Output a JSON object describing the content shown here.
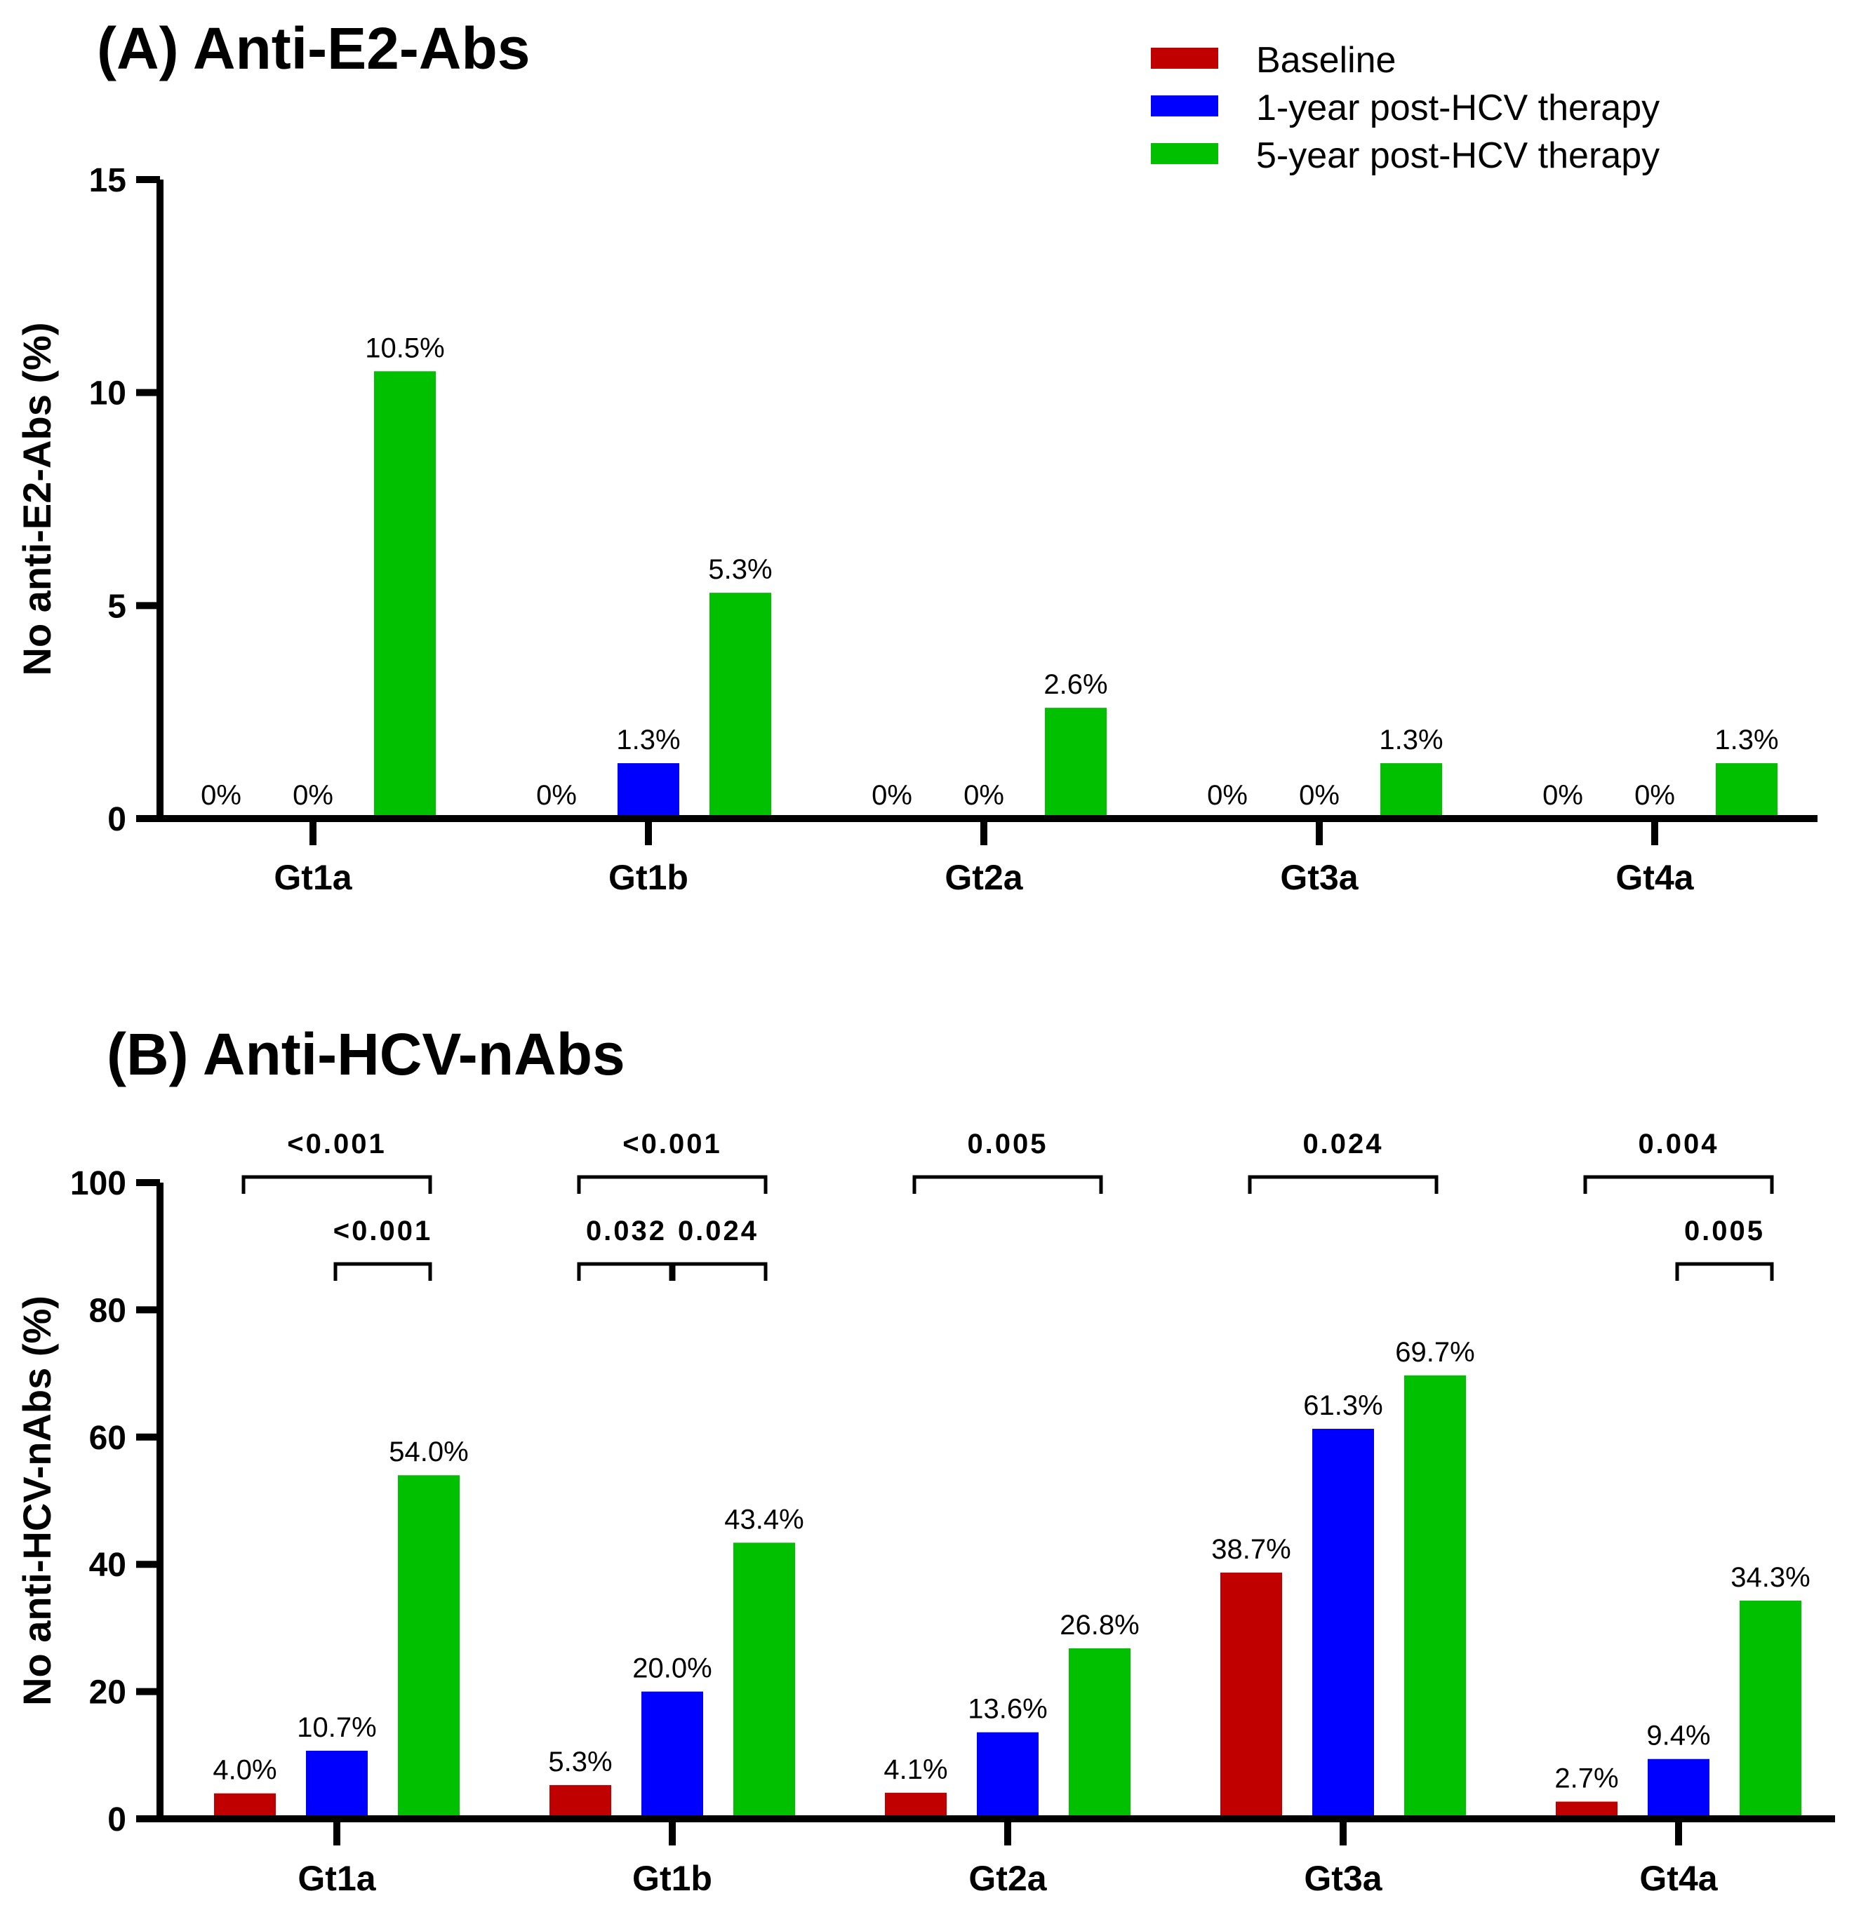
{
  "legend": [
    {
      "label": "Baseline",
      "color": "#c00000"
    },
    {
      "label": "1-year post-HCV therapy",
      "color": "#0000ff"
    },
    {
      "label": "5-year post-HCV therapy",
      "color": "#00c000"
    }
  ],
  "chart_data": [
    {
      "type": "bar",
      "title": "(A) Anti-E2-Abs",
      "ylabel": "No anti-E2-Abs (%)",
      "xlabel": "",
      "ylim": [
        0,
        15
      ],
      "yticks": [
        0,
        5,
        10,
        15
      ],
      "categories": [
        "Gt1a",
        "Gt1b",
        "Gt2a",
        "Gt3a",
        "Gt4a"
      ],
      "series": [
        {
          "name": "Baseline",
          "values": [
            0,
            0,
            0,
            0,
            0
          ],
          "labels": [
            "0%",
            "0%",
            "0%",
            "0%",
            "0%"
          ]
        },
        {
          "name": "1-year post-HCV therapy",
          "values": [
            0,
            1.3,
            0,
            0,
            0
          ],
          "labels": [
            "0%",
            "1.3%",
            "0%",
            "0%",
            "0%"
          ]
        },
        {
          "name": "5-year post-HCV therapy",
          "values": [
            10.5,
            5.3,
            2.6,
            1.3,
            1.3
          ],
          "labels": [
            "10.5%",
            "5.3%",
            "2.6%",
            "1.3%",
            "1.3%"
          ]
        }
      ],
      "legend_position": "top-right",
      "grid": false
    },
    {
      "type": "bar",
      "title": "(B) Anti-HCV-nAbs",
      "ylabel": "No anti-HCV-nAbs (%)",
      "xlabel": "",
      "ylim": [
        0,
        100
      ],
      "yticks": [
        0,
        20,
        40,
        60,
        80,
        100
      ],
      "categories": [
        "Gt1a",
        "Gt1b",
        "Gt2a",
        "Gt3a",
        "Gt4a"
      ],
      "series": [
        {
          "name": "Baseline",
          "values": [
            4.0,
            5.3,
            4.1,
            38.7,
            2.7
          ],
          "labels": [
            "4.0%",
            "5.3%",
            "4.1%",
            "38.7%",
            "2.7%"
          ]
        },
        {
          "name": "1-year post-HCV therapy",
          "values": [
            10.7,
            20.0,
            13.6,
            61.3,
            9.4
          ],
          "labels": [
            "10.7%",
            "20.0%",
            "13.6%",
            "61.3%",
            "9.4%"
          ]
        },
        {
          "name": "5-year post-HCV therapy",
          "values": [
            54.0,
            43.4,
            26.8,
            69.7,
            34.3
          ],
          "labels": [
            "54.0%",
            "43.4%",
            "26.8%",
            "69.7%",
            "34.3%"
          ]
        }
      ],
      "comparisons": [
        {
          "category": "Gt1a",
          "from": "Baseline",
          "to": "5-year post-HCV therapy",
          "p": "<0.001",
          "row": "upper"
        },
        {
          "category": "Gt1a",
          "from": "1-year post-HCV therapy",
          "to": "5-year post-HCV therapy",
          "p": "<0.001",
          "row": "lower"
        },
        {
          "category": "Gt1b",
          "from": "Baseline",
          "to": "5-year post-HCV therapy",
          "p": "<0.001",
          "row": "upper"
        },
        {
          "category": "Gt1b",
          "from": "Baseline",
          "to": "1-year post-HCV therapy",
          "p": "0.032",
          "row": "lower"
        },
        {
          "category": "Gt1b",
          "from": "1-year post-HCV therapy",
          "to": "5-year post-HCV therapy",
          "p": "0.024",
          "row": "lower"
        },
        {
          "category": "Gt2a",
          "from": "Baseline",
          "to": "5-year post-HCV therapy",
          "p": "0.005",
          "row": "upper"
        },
        {
          "category": "Gt3a",
          "from": "Baseline",
          "to": "5-year post-HCV therapy",
          "p": "0.024",
          "row": "upper"
        },
        {
          "category": "Gt4a",
          "from": "Baseline",
          "to": "5-year post-HCV therapy",
          "p": "0.004",
          "row": "upper"
        },
        {
          "category": "Gt4a",
          "from": "1-year post-HCV therapy",
          "to": "5-year post-HCV therapy",
          "p": "0.005",
          "row": "lower"
        }
      ],
      "legend_position": "top-right",
      "grid": false
    }
  ]
}
